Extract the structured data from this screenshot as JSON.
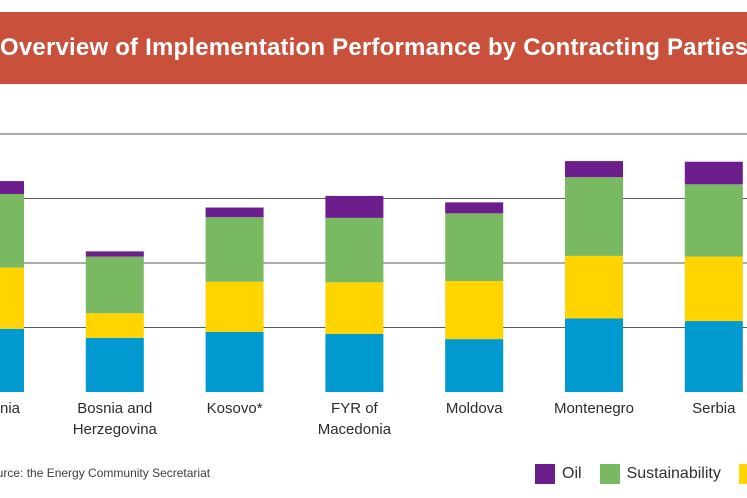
{
  "title": "Overview of Implementation Performance by Contracting Parties",
  "source": "Source: the Energy Community Secretariat",
  "colors": {
    "oil": "#6b1e8c",
    "sustainability": "#79b962",
    "yellow": "#ffd400",
    "blue": "#0099d0",
    "banner": "#c9503a",
    "grid": "#5a5a5a"
  },
  "legend": [
    {
      "name": "Oil",
      "color": "#6b1e8c"
    },
    {
      "name": "Sustainability",
      "color": "#79b962"
    },
    {
      "name": "",
      "color": "#ffd400"
    }
  ],
  "chart_data": {
    "type": "bar",
    "stacked": true,
    "title": "Overview of Implementation Performance by Contracting Parties",
    "categories": [
      "Albania",
      "Bosnia and Herzegovina",
      "Kosovo*",
      "FYR of Macedonia",
      "Moldova",
      "Montenegro",
      "Serbia"
    ],
    "series": [
      {
        "name": "Blue",
        "color": "#0099d0",
        "values": [
          0.98,
          0.84,
          0.93,
          0.9,
          0.82,
          1.14,
          1.1
        ]
      },
      {
        "name": "Yellow",
        "color": "#ffd400",
        "values": [
          0.95,
          0.38,
          0.78,
          0.8,
          0.9,
          0.97,
          1.0
        ]
      },
      {
        "name": "Sustainability",
        "color": "#79b962",
        "values": [
          1.14,
          0.88,
          1.0,
          1.0,
          1.05,
          1.22,
          1.12
        ]
      },
      {
        "name": "Oil",
        "color": "#6b1e8c",
        "values": [
          0.2,
          0.08,
          0.15,
          0.34,
          0.17,
          0.25,
          0.35
        ]
      }
    ],
    "ylim": [
      0,
      4
    ],
    "gridlines": [
      1,
      2,
      3,
      4
    ],
    "xlabel": "",
    "ylabel": ""
  }
}
